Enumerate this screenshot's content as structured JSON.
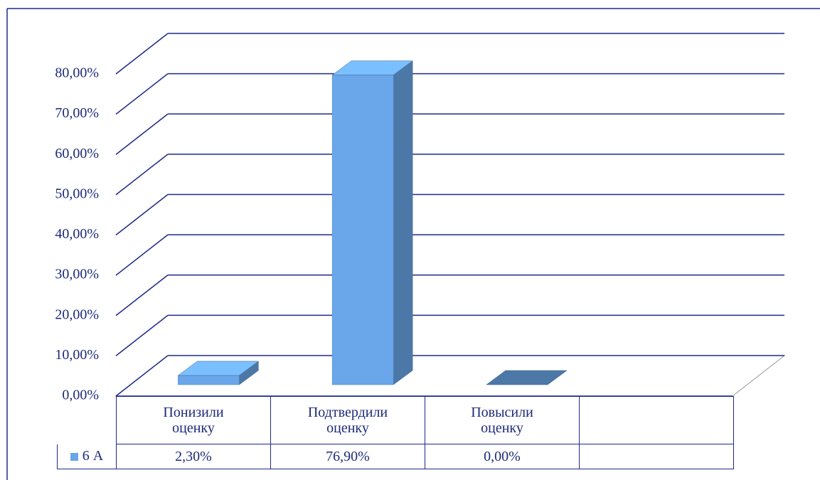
{
  "chart_data": {
    "type": "bar3d",
    "categories": [
      "Понизили оценку",
      "Подтвердили оценку",
      "Повысили оценку",
      null
    ],
    "series": [
      {
        "name": "6 А",
        "color": "#6aa6ea",
        "values": [
          2.3,
          76.9,
          0,
          null
        ],
        "value_labels": [
          "2,30%",
          "76,90%",
          "0,00%",
          null
        ]
      }
    ],
    "ylim": [
      0,
      80
    ],
    "yticks": [
      {
        "value": 0,
        "label": "0,00%"
      },
      {
        "value": 10,
        "label": "10,00%"
      },
      {
        "value": 20,
        "label": "20,00%"
      },
      {
        "value": 30,
        "label": "30,00%"
      },
      {
        "value": 40,
        "label": "40,00%"
      },
      {
        "value": 50,
        "label": "50,00%"
      },
      {
        "value": 60,
        "label": "60,00%"
      },
      {
        "value": 70,
        "label": "70,00%"
      },
      {
        "value": 80,
        "label": "80,00%"
      }
    ],
    "grid": true
  }
}
